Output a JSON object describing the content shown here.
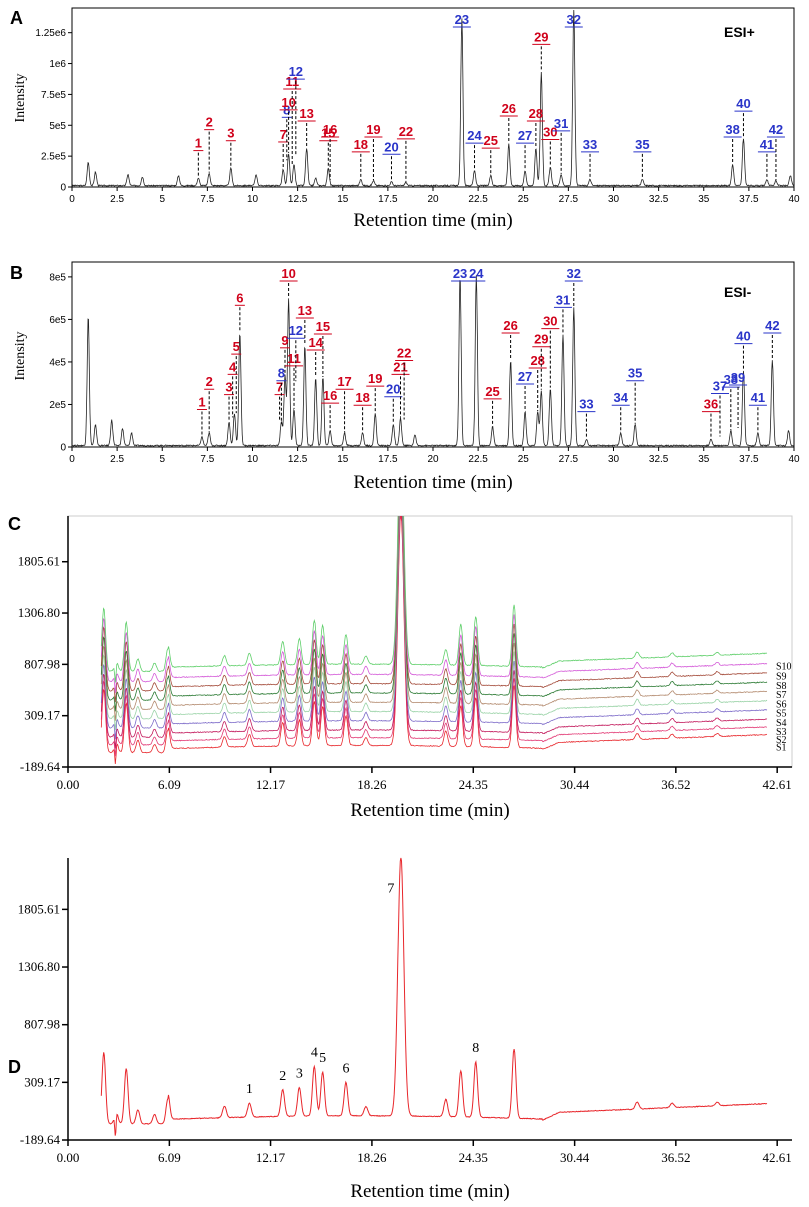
{
  "chart_data": [
    {
      "panel": "A",
      "type": "line",
      "mode_label": "ESI+",
      "xlabel": "Retention time (min)",
      "ylabel": "Intensity",
      "xlim": [
        0,
        40
      ],
      "ylim": [
        0,
        1450000
      ],
      "x_ticks": [
        "0",
        "2.5",
        "5",
        "7.5",
        "10",
        "12.5",
        "15",
        "17.5",
        "20",
        "22.5",
        "25",
        "27.5",
        "30",
        "32.5",
        "35",
        "37.5",
        "40"
      ],
      "y_ticks": [
        "0",
        "2.5e5",
        "5e5",
        "7.5e5",
        "1e6",
        "1.25e6"
      ],
      "peaks": [
        {
          "rt": 0.9,
          "h": 190000
        },
        {
          "rt": 1.3,
          "h": 110000
        },
        {
          "rt": 3.1,
          "h": 90000
        },
        {
          "rt": 3.9,
          "h": 70000
        },
        {
          "rt": 5.9,
          "h": 80000
        },
        {
          "rt": 7.0,
          "h": 60000
        },
        {
          "rt": 7.6,
          "h": 100000
        },
        {
          "rt": 8.8,
          "h": 140000
        },
        {
          "rt": 10.2,
          "h": 90000
        },
        {
          "rt": 11.7,
          "h": 130000
        },
        {
          "rt": 12.0,
          "h": 260000
        },
        {
          "rt": 12.3,
          "h": 170000
        },
        {
          "rt": 13.0,
          "h": 300000
        },
        {
          "rt": 13.5,
          "h": 60000
        },
        {
          "rt": 14.2,
          "h": 140000
        },
        {
          "rt": 16.0,
          "h": 50000
        },
        {
          "rt": 16.7,
          "h": 40000
        },
        {
          "rt": 17.7,
          "h": 30000
        },
        {
          "rt": 18.5,
          "h": 25000
        },
        {
          "rt": 21.6,
          "h": 1350000
        },
        {
          "rt": 22.3,
          "h": 120000
        },
        {
          "rt": 23.2,
          "h": 80000
        },
        {
          "rt": 24.2,
          "h": 340000
        },
        {
          "rt": 25.1,
          "h": 120000
        },
        {
          "rt": 25.7,
          "h": 300000
        },
        {
          "rt": 26.0,
          "h": 920000
        },
        {
          "rt": 26.5,
          "h": 150000
        },
        {
          "rt": 27.1,
          "h": 90000
        },
        {
          "rt": 27.8,
          "h": 1430000
        },
        {
          "rt": 28.7,
          "h": 50000
        },
        {
          "rt": 31.6,
          "h": 50000
        },
        {
          "rt": 36.6,
          "h": 170000
        },
        {
          "rt": 37.2,
          "h": 380000
        },
        {
          "rt": 38.5,
          "h": 50000
        },
        {
          "rt": 39.0,
          "h": 40000
        },
        {
          "rt": 39.8,
          "h": 80000
        }
      ],
      "labels": [
        {
          "text": "1",
          "color": "red",
          "rt": 7.0,
          "h": 60000
        },
        {
          "text": "2",
          "color": "red",
          "rt": 7.6,
          "h": 100000
        },
        {
          "text": "3",
          "color": "red",
          "rt": 8.8,
          "h": 140000
        },
        {
          "text": "7",
          "color": "red",
          "rt": 11.7,
          "h": 130000
        },
        {
          "text": "8",
          "color": "blue",
          "rt": 11.9,
          "h": 200000
        },
        {
          "text": "10",
          "color": "red",
          "rt": 12.0,
          "h": 260000
        },
        {
          "text": "11",
          "color": "red",
          "rt": 12.2,
          "h": 170000
        },
        {
          "text": "12",
          "color": "blue",
          "rt": 12.4,
          "h": 250000
        },
        {
          "text": "13",
          "color": "red",
          "rt": 13.0,
          "h": 300000
        },
        {
          "text": "15",
          "color": "red",
          "rt": 14.2,
          "h": 140000
        },
        {
          "text": "16",
          "color": "red",
          "rt": 14.3,
          "h": 40000
        },
        {
          "text": "18",
          "color": "red",
          "rt": 16.0,
          "h": 50000
        },
        {
          "text": "19",
          "color": "red",
          "rt": 16.7,
          "h": 40000
        },
        {
          "text": "20",
          "color": "blue",
          "rt": 17.7,
          "h": 30000
        },
        {
          "text": "22",
          "color": "red",
          "rt": 18.5,
          "h": 25000
        },
        {
          "text": "23",
          "color": "blue",
          "rt": 21.6,
          "h": 1350000
        },
        {
          "text": "24",
          "color": "blue",
          "rt": 22.3,
          "h": 120000
        },
        {
          "text": "25",
          "color": "red",
          "rt": 23.2,
          "h": 80000
        },
        {
          "text": "26",
          "color": "red",
          "rt": 24.2,
          "h": 340000
        },
        {
          "text": "27",
          "color": "blue",
          "rt": 25.1,
          "h": 120000
        },
        {
          "text": "28",
          "color": "red",
          "rt": 25.7,
          "h": 300000
        },
        {
          "text": "29",
          "color": "red",
          "rt": 26.0,
          "h": 920000
        },
        {
          "text": "30",
          "color": "red",
          "rt": 26.5,
          "h": 150000
        },
        {
          "text": "31",
          "color": "blue",
          "rt": 27.1,
          "h": 90000
        },
        {
          "text": "32",
          "color": "blue",
          "rt": 27.8,
          "h": 1430000
        },
        {
          "text": "33",
          "color": "blue",
          "rt": 28.7,
          "h": 50000
        },
        {
          "text": "35",
          "color": "blue",
          "rt": 31.6,
          "h": 50000
        },
        {
          "text": "38",
          "color": "blue",
          "rt": 36.6,
          "h": 170000
        },
        {
          "text": "40",
          "color": "blue",
          "rt": 37.2,
          "h": 380000
        },
        {
          "text": "41",
          "color": "blue",
          "rt": 38.5,
          "h": 50000
        },
        {
          "text": "42",
          "color": "blue",
          "rt": 39.0,
          "h": 40000
        }
      ]
    },
    {
      "panel": "B",
      "type": "line",
      "mode_label": "ESI-",
      "xlabel": "Retention time (min)",
      "ylabel": "Intensity",
      "xlim": [
        0,
        40
      ],
      "ylim": [
        0,
        870000
      ],
      "x_ticks": [
        "0",
        "2.5",
        "5",
        "7.5",
        "10",
        "12.5",
        "15",
        "17.5",
        "20",
        "22.5",
        "25",
        "27.5",
        "30",
        "32.5",
        "35",
        "37.5",
        "40"
      ],
      "y_ticks": [
        "0",
        "2e5",
        "4e5",
        "6e5",
        "8e5"
      ],
      "peaks": [
        {
          "rt": 0.9,
          "h": 610000
        },
        {
          "rt": 1.3,
          "h": 100000
        },
        {
          "rt": 2.2,
          "h": 120000
        },
        {
          "rt": 2.8,
          "h": 80000
        },
        {
          "rt": 3.3,
          "h": 60000
        },
        {
          "rt": 7.2,
          "h": 40000
        },
        {
          "rt": 7.6,
          "h": 60000
        },
        {
          "rt": 8.7,
          "h": 110000
        },
        {
          "rt": 9.0,
          "h": 150000
        },
        {
          "rt": 9.3,
          "h": 530000
        },
        {
          "rt": 11.6,
          "h": 110000
        },
        {
          "rt": 11.8,
          "h": 330000
        },
        {
          "rt": 12.0,
          "h": 690000
        },
        {
          "rt": 12.3,
          "h": 170000
        },
        {
          "rt": 12.9,
          "h": 470000
        },
        {
          "rt": 13.5,
          "h": 320000
        },
        {
          "rt": 13.9,
          "h": 320000
        },
        {
          "rt": 14.3,
          "h": 70000
        },
        {
          "rt": 15.1,
          "h": 60000
        },
        {
          "rt": 16.1,
          "h": 60000
        },
        {
          "rt": 16.8,
          "h": 150000
        },
        {
          "rt": 17.8,
          "h": 100000
        },
        {
          "rt": 18.2,
          "h": 130000
        },
        {
          "rt": 19.0,
          "h": 50000
        },
        {
          "rt": 21.5,
          "h": 800000
        },
        {
          "rt": 22.4,
          "h": 800000
        },
        {
          "rt": 23.3,
          "h": 90000
        },
        {
          "rt": 24.3,
          "h": 400000
        },
        {
          "rt": 25.1,
          "h": 160000
        },
        {
          "rt": 25.8,
          "h": 160000
        },
        {
          "rt": 26.0,
          "h": 260000
        },
        {
          "rt": 26.5,
          "h": 270000
        },
        {
          "rt": 27.2,
          "h": 520000
        },
        {
          "rt": 27.8,
          "h": 650000
        },
        {
          "rt": 28.5,
          "h": 30000
        },
        {
          "rt": 30.4,
          "h": 60000
        },
        {
          "rt": 31.2,
          "h": 100000
        },
        {
          "rt": 35.4,
          "h": 30000
        },
        {
          "rt": 36.5,
          "h": 70000
        },
        {
          "rt": 37.2,
          "h": 350000
        },
        {
          "rt": 38.0,
          "h": 60000
        },
        {
          "rt": 38.8,
          "h": 400000
        },
        {
          "rt": 39.7,
          "h": 70000
        }
      ],
      "labels": [
        {
          "text": "1",
          "color": "red",
          "rt": 7.2,
          "h": 40000
        },
        {
          "text": "2",
          "color": "red",
          "rt": 7.6,
          "h": 60000
        },
        {
          "text": "3",
          "color": "red",
          "rt": 8.7,
          "h": 110000
        },
        {
          "text": "4",
          "color": "red",
          "rt": 8.9,
          "h": 130000
        },
        {
          "text": "5",
          "color": "red",
          "rt": 9.1,
          "h": 150000
        },
        {
          "text": "6",
          "color": "red",
          "rt": 9.3,
          "h": 530000
        },
        {
          "text": "7",
          "color": "red",
          "rt": 11.5,
          "h": 110000
        },
        {
          "text": "8",
          "color": "blue",
          "rt": 11.6,
          "h": 100000
        },
        {
          "text": "9",
          "color": "red",
          "rt": 11.8,
          "h": 330000
        },
        {
          "text": "10",
          "color": "red",
          "rt": 12.0,
          "h": 690000
        },
        {
          "text": "11",
          "color": "red",
          "rt": 12.3,
          "h": 170000
        },
        {
          "text": "12",
          "color": "blue",
          "rt": 12.4,
          "h": 300000
        },
        {
          "text": "13",
          "color": "red",
          "rt": 12.9,
          "h": 470000
        },
        {
          "text": "14",
          "color": "red",
          "rt": 13.5,
          "h": 320000
        },
        {
          "text": "15",
          "color": "red",
          "rt": 13.9,
          "h": 320000
        },
        {
          "text": "16",
          "color": "red",
          "rt": 14.3,
          "h": 70000
        },
        {
          "text": "17",
          "color": "red",
          "rt": 15.1,
          "h": 60000
        },
        {
          "text": "18",
          "color": "red",
          "rt": 16.1,
          "h": 60000
        },
        {
          "text": "19",
          "color": "red",
          "rt": 16.8,
          "h": 150000
        },
        {
          "text": "20",
          "color": "blue",
          "rt": 17.8,
          "h": 100000
        },
        {
          "text": "21",
          "color": "red",
          "rt": 18.2,
          "h": 130000
        },
        {
          "text": "22",
          "color": "red",
          "rt": 18.4,
          "h": 120000
        },
        {
          "text": "23",
          "color": "blue",
          "rt": 21.5,
          "h": 800000
        },
        {
          "text": "24",
          "color": "blue",
          "rt": 22.4,
          "h": 800000
        },
        {
          "text": "25",
          "color": "red",
          "rt": 23.3,
          "h": 90000
        },
        {
          "text": "26",
          "color": "red",
          "rt": 24.3,
          "h": 400000
        },
        {
          "text": "27",
          "color": "blue",
          "rt": 25.1,
          "h": 160000
        },
        {
          "text": "28",
          "color": "red",
          "rt": 25.8,
          "h": 160000
        },
        {
          "text": "29",
          "color": "red",
          "rt": 26.0,
          "h": 260000
        },
        {
          "text": "30",
          "color": "red",
          "rt": 26.5,
          "h": 270000
        },
        {
          "text": "31",
          "color": "blue",
          "rt": 27.2,
          "h": 520000
        },
        {
          "text": "32",
          "color": "blue",
          "rt": 27.8,
          "h": 650000
        },
        {
          "text": "33",
          "color": "blue",
          "rt": 28.5,
          "h": 30000
        },
        {
          "text": "34",
          "color": "blue",
          "rt": 30.4,
          "h": 60000
        },
        {
          "text": "35",
          "color": "blue",
          "rt": 31.2,
          "h": 100000
        },
        {
          "text": "36",
          "color": "red",
          "rt": 35.4,
          "h": 30000
        },
        {
          "text": "37",
          "color": "blue",
          "rt": 35.9,
          "h": 40000
        },
        {
          "text": "38",
          "color": "blue",
          "rt": 36.5,
          "h": 70000
        },
        {
          "text": "39",
          "color": "blue",
          "rt": 36.9,
          "h": 80000
        },
        {
          "text": "40",
          "color": "blue",
          "rt": 37.2,
          "h": 350000
        },
        {
          "text": "41",
          "color": "blue",
          "rt": 38.0,
          "h": 60000
        },
        {
          "text": "42",
          "color": "blue",
          "rt": 38.8,
          "h": 400000
        }
      ]
    },
    {
      "panel": "C",
      "type": "line",
      "xlabel": "Retention time (min)",
      "xlim": [
        0,
        43.5
      ],
      "ylim": [
        -189.64,
        2250
      ],
      "x_ticks": [
        "0.00",
        "6.09",
        "12.17",
        "18.26",
        "24.35",
        "30.44",
        "36.52",
        "42.61"
      ],
      "x_tick_values": [
        0,
        6.09,
        12.17,
        18.26,
        24.35,
        30.44,
        36.52,
        42.61
      ],
      "y_ticks": [
        "-189.64",
        "309.17",
        "807.98",
        "1306.80",
        "1805.61"
      ],
      "y_tick_values": [
        -189.64,
        309.17,
        807.98,
        1306.8,
        1805.61
      ],
      "series": [
        {
          "name": "S1",
          "offset": 0
        },
        {
          "name": "S2",
          "offset": 75
        },
        {
          "name": "S3",
          "offset": 150
        },
        {
          "name": "S4",
          "offset": 240
        },
        {
          "name": "S5",
          "offset": 330
        },
        {
          "name": "S6",
          "offset": 420
        },
        {
          "name": "S7",
          "offset": 510
        },
        {
          "name": "S8",
          "offset": 600
        },
        {
          "name": "S9",
          "offset": 690
        },
        {
          "name": "S10",
          "offset": 790
        }
      ],
      "series_colors": [
        "#e8262b",
        "#e23a75",
        "#c2185b",
        "#7d6bc9",
        "#9ad3a7",
        "#b38a6e",
        "#2b7a33",
        "#a44b3a",
        "#d45ad8",
        "#5fcf6a"
      ]
    },
    {
      "panel": "D",
      "type": "line",
      "xlabel": "Retention time (min)",
      "xlim": [
        0,
        43.5
      ],
      "ylim": [
        -189.64,
        2250
      ],
      "x_ticks": [
        "0.00",
        "6.09",
        "12.17",
        "18.26",
        "24.35",
        "30.44",
        "36.52",
        "42.61"
      ],
      "x_tick_values": [
        0,
        6.09,
        12.17,
        18.26,
        24.35,
        30.44,
        36.52,
        42.61
      ],
      "y_ticks": [
        "-189.64",
        "309.17",
        "807.98",
        "1306.80",
        "1805.61"
      ],
      "y_tick_values": [
        -189.64,
        309.17,
        807.98,
        1306.8,
        1805.61
      ],
      "peaks": [
        {
          "rt": 2.15,
          "h": 620
        },
        {
          "rt": 2.9,
          "h": 100
        },
        {
          "rt": 3.5,
          "h": 480
        },
        {
          "rt": 4.2,
          "h": 120
        },
        {
          "rt": 5.2,
          "h": 80
        },
        {
          "rt": 6.0,
          "h": 220
        },
        {
          "rt": 9.4,
          "h": 100
        },
        {
          "rt": 10.9,
          "h": 120
        },
        {
          "rt": 12.9,
          "h": 230
        },
        {
          "rt": 13.9,
          "h": 250
        },
        {
          "rt": 14.8,
          "h": 430
        },
        {
          "rt": 15.3,
          "h": 380
        },
        {
          "rt": 16.7,
          "h": 290
        },
        {
          "rt": 17.9,
          "h": 80
        },
        {
          "rt": 20.0,
          "h": 2250
        },
        {
          "rt": 22.7,
          "h": 150
        },
        {
          "rt": 23.6,
          "h": 400
        },
        {
          "rt": 24.5,
          "h": 480
        },
        {
          "rt": 26.8,
          "h": 600
        },
        {
          "rt": 34.2,
          "h": 60
        },
        {
          "rt": 36.3,
          "h": 40
        },
        {
          "rt": 39.0,
          "h": 30
        }
      ],
      "labels": [
        {
          "text": "1",
          "rt": 10.9,
          "h": 120
        },
        {
          "text": "2",
          "rt": 12.9,
          "h": 230
        },
        {
          "text": "3",
          "rt": 13.9,
          "h": 250
        },
        {
          "text": "4",
          "rt": 14.8,
          "h": 430
        },
        {
          "text": "5",
          "rt": 15.3,
          "h": 380
        },
        {
          "text": "6",
          "rt": 16.7,
          "h": 290
        },
        {
          "text": "7",
          "rt": 20.0,
          "h": 2250
        },
        {
          "text": "8",
          "rt": 24.5,
          "h": 480
        }
      ]
    }
  ]
}
